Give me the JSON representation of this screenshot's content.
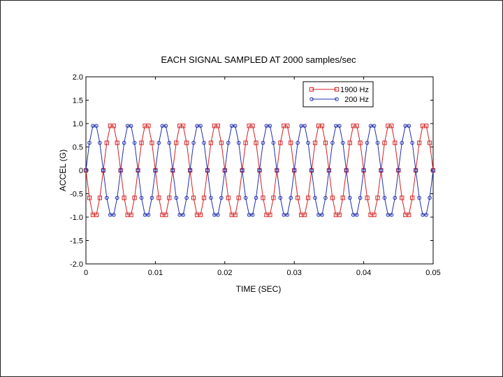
{
  "chart_data": {
    "type": "line",
    "title": "EACH SIGNAL SAMPLED AT 2000 samples/sec",
    "xlabel": "TIME (SEC)",
    "ylabel": "ACCEL (G)",
    "xlim": [
      0,
      0.05
    ],
    "ylim": [
      -2.0,
      2.0
    ],
    "x_ticks": [
      "0",
      "0.01",
      "0.02",
      "0.03",
      "0.04",
      "0.05"
    ],
    "y_ticks": [
      "2.0",
      "1.5",
      "1.0",
      "0.5",
      "0",
      "-0.5",
      "-1.0",
      "-1.5",
      "-2.0"
    ],
    "grid": false,
    "legend_position": "top-right",
    "sample_rate": 2000,
    "x": [
      0,
      0.0005,
      0.001,
      0.0015,
      0.002,
      0.0025,
      0.003,
      0.0035,
      0.004,
      0.0045,
      0.005,
      0.0055,
      0.006,
      0.0065,
      0.007,
      0.0075,
      0.008,
      0.0085,
      0.009,
      0.0095,
      0.01,
      0.0105,
      0.011,
      0.0115,
      0.012,
      0.0125,
      0.013,
      0.0135,
      0.014,
      0.0145,
      0.015,
      0.0155,
      0.016,
      0.0165,
      0.017,
      0.0175,
      0.018,
      0.0185,
      0.019,
      0.0195,
      0.02,
      0.0205,
      0.021,
      0.0215,
      0.022,
      0.0225,
      0.023,
      0.0235,
      0.024,
      0.0245,
      0.025,
      0.0255,
      0.026,
      0.0265,
      0.027,
      0.0275,
      0.028,
      0.0285,
      0.029,
      0.0295,
      0.03,
      0.0305,
      0.031,
      0.0315,
      0.032,
      0.0325,
      0.033,
      0.0335,
      0.034,
      0.0345,
      0.035,
      0.0355,
      0.036,
      0.0365,
      0.037,
      0.0375,
      0.038,
      0.0385,
      0.039,
      0.0395,
      0.04,
      0.0405,
      0.041,
      0.0415,
      0.042,
      0.0425,
      0.043,
      0.0435,
      0.044,
      0.0445,
      0.045,
      0.0455,
      0.046,
      0.0465,
      0.047,
      0.0475,
      0.048,
      0.0485,
      0.049,
      0.0495,
      0.05
    ],
    "series": [
      {
        "name": "1900 Hz",
        "color": "#d42020",
        "marker": "square",
        "values": [
          0,
          -0.588,
          -0.951,
          -0.951,
          -0.588,
          0,
          0.588,
          0.951,
          0.951,
          0.588,
          0,
          -0.588,
          -0.951,
          -0.951,
          -0.588,
          0,
          0.588,
          0.951,
          0.951,
          0.588,
          0,
          -0.588,
          -0.951,
          -0.951,
          -0.588,
          0,
          0.588,
          0.951,
          0.951,
          0.588,
          0,
          -0.588,
          -0.951,
          -0.951,
          -0.588,
          0,
          0.588,
          0.951,
          0.951,
          0.588,
          0,
          -0.588,
          -0.951,
          -0.951,
          -0.588,
          0,
          0.588,
          0.951,
          0.951,
          0.588,
          0,
          -0.588,
          -0.951,
          -0.951,
          -0.588,
          0,
          0.588,
          0.951,
          0.951,
          0.588,
          0,
          -0.588,
          -0.951,
          -0.951,
          -0.588,
          0,
          0.588,
          0.951,
          0.951,
          0.588,
          0,
          -0.588,
          -0.951,
          -0.951,
          -0.588,
          0,
          0.588,
          0.951,
          0.951,
          0.588,
          0,
          -0.588,
          -0.951,
          -0.951,
          -0.588,
          0,
          0.588,
          0.951,
          0.951,
          0.588,
          0,
          -0.588,
          -0.951,
          -0.951,
          -0.588,
          0,
          0.588,
          0.951,
          0.951,
          0.588,
          0
        ]
      },
      {
        "name": "200 Hz",
        "color": "#2030b0",
        "marker": "circle",
        "values": [
          0,
          0.588,
          0.951,
          0.951,
          0.588,
          0,
          -0.588,
          -0.951,
          -0.951,
          -0.588,
          0,
          0.588,
          0.951,
          0.951,
          0.588,
          0,
          -0.588,
          -0.951,
          -0.951,
          -0.588,
          0,
          0.588,
          0.951,
          0.951,
          0.588,
          0,
          -0.588,
          -0.951,
          -0.951,
          -0.588,
          0,
          0.588,
          0.951,
          0.951,
          0.588,
          0,
          -0.588,
          -0.951,
          -0.951,
          -0.588,
          0,
          0.588,
          0.951,
          0.951,
          0.588,
          0,
          -0.588,
          -0.951,
          -0.951,
          -0.588,
          0,
          0.588,
          0.951,
          0.951,
          0.588,
          0,
          -0.588,
          -0.951,
          -0.951,
          -0.588,
          0,
          0.588,
          0.951,
          0.951,
          0.588,
          0,
          -0.588,
          -0.951,
          -0.951,
          -0.588,
          0,
          0.588,
          0.951,
          0.951,
          0.588,
          0,
          -0.588,
          -0.951,
          -0.951,
          -0.588,
          0,
          0.588,
          0.951,
          0.951,
          0.588,
          0,
          -0.588,
          -0.951,
          -0.951,
          -0.588,
          0,
          0.588,
          0.951,
          0.951,
          0.588,
          0,
          -0.588,
          -0.951,
          -0.951,
          -0.588,
          0
        ]
      }
    ]
  }
}
